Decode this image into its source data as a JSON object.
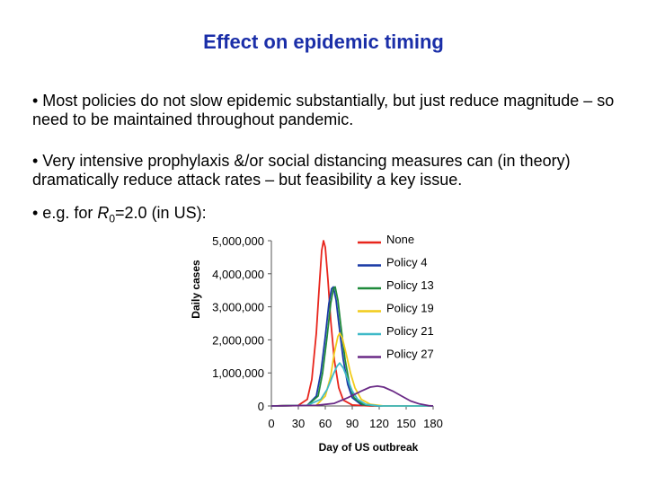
{
  "slide": {
    "title": "Effect on epidemic timing",
    "bullets": [
      "• Most policies do not slow epidemic substantially, but just reduce magnitude – so need to be maintained throughout pandemic.",
      "• Very intensive prophylaxis &/or social distancing measures can (in theory) dramatically reduce attack rates – but feasibility a key issue."
    ],
    "bullet3": {
      "prefix": "• e.g. for ",
      "var": "R",
      "sub": "0",
      "suffix": "=2.0 (in US):"
    }
  },
  "chart_data": {
    "type": "line",
    "xlabel": "Day of US outbreak",
    "ylabel": "Daily cases",
    "xlim": [
      0,
      180
    ],
    "ylim": [
      0,
      5000000
    ],
    "x_ticks": [
      0,
      30,
      60,
      90,
      120,
      150,
      180
    ],
    "x_tick_labels": [
      "0",
      "30",
      "60",
      "90",
      "120",
      "150",
      "180"
    ],
    "y_ticks": [
      0,
      1000000,
      2000000,
      3000000,
      4000000,
      5000000
    ],
    "y_tick_labels": [
      "0",
      "1,000,000",
      "2,000,000",
      "3,000,000",
      "4,000,000",
      "5,000,000"
    ],
    "legend_position": "right",
    "series": [
      {
        "name": "None",
        "color": "#e8251c",
        "points": [
          [
            0,
            0
          ],
          [
            30,
            20000
          ],
          [
            40,
            200000
          ],
          [
            45,
            800000
          ],
          [
            50,
            2200000
          ],
          [
            53,
            3500000
          ],
          [
            56,
            4700000
          ],
          [
            58,
            5000000
          ],
          [
            60,
            4800000
          ],
          [
            63,
            3800000
          ],
          [
            66,
            2600000
          ],
          [
            70,
            1400000
          ],
          [
            75,
            550000
          ],
          [
            80,
            180000
          ],
          [
            90,
            30000
          ],
          [
            110,
            0
          ],
          [
            180,
            0
          ]
        ]
      },
      {
        "name": "Policy 4",
        "color": "#1a3aa6",
        "points": [
          [
            0,
            0
          ],
          [
            40,
            20000
          ],
          [
            50,
            300000
          ],
          [
            55,
            1000000
          ],
          [
            60,
            2100000
          ],
          [
            64,
            3100000
          ],
          [
            67,
            3550000
          ],
          [
            69,
            3600000
          ],
          [
            72,
            3200000
          ],
          [
            75,
            2500000
          ],
          [
            80,
            1400000
          ],
          [
            85,
            650000
          ],
          [
            90,
            250000
          ],
          [
            100,
            40000
          ],
          [
            120,
            0
          ],
          [
            180,
            0
          ]
        ]
      },
      {
        "name": "Policy 13",
        "color": "#1f8a3a",
        "points": [
          [
            0,
            0
          ],
          [
            40,
            20000
          ],
          [
            52,
            300000
          ],
          [
            57,
            1000000
          ],
          [
            62,
            2100000
          ],
          [
            66,
            3100000
          ],
          [
            69,
            3550000
          ],
          [
            71,
            3600000
          ],
          [
            74,
            3200000
          ],
          [
            77,
            2500000
          ],
          [
            82,
            1400000
          ],
          [
            87,
            650000
          ],
          [
            92,
            250000
          ],
          [
            102,
            40000
          ],
          [
            120,
            0
          ],
          [
            180,
            0
          ]
        ]
      },
      {
        "name": "Policy 19",
        "color": "#f2cc1a",
        "points": [
          [
            0,
            0
          ],
          [
            50,
            20000
          ],
          [
            60,
            300000
          ],
          [
            66,
            900000
          ],
          [
            70,
            1600000
          ],
          [
            74,
            2100000
          ],
          [
            76,
            2200000
          ],
          [
            79,
            2050000
          ],
          [
            83,
            1600000
          ],
          [
            88,
            1000000
          ],
          [
            93,
            550000
          ],
          [
            100,
            200000
          ],
          [
            110,
            50000
          ],
          [
            125,
            0
          ],
          [
            180,
            0
          ]
        ]
      },
      {
        "name": "Policy 21",
        "color": "#3fb9c8",
        "points": [
          [
            0,
            0
          ],
          [
            40,
            20000
          ],
          [
            55,
            200000
          ],
          [
            62,
            500000
          ],
          [
            68,
            900000
          ],
          [
            73,
            1200000
          ],
          [
            76,
            1300000
          ],
          [
            80,
            1150000
          ],
          [
            85,
            800000
          ],
          [
            90,
            450000
          ],
          [
            96,
            200000
          ],
          [
            105,
            50000
          ],
          [
            120,
            0
          ],
          [
            180,
            0
          ]
        ]
      },
      {
        "name": "Policy 27",
        "color": "#6a2a86",
        "points": [
          [
            0,
            0
          ],
          [
            50,
            20000
          ],
          [
            70,
            80000
          ],
          [
            85,
            250000
          ],
          [
            100,
            450000
          ],
          [
            110,
            570000
          ],
          [
            118,
            600000
          ],
          [
            125,
            570000
          ],
          [
            135,
            450000
          ],
          [
            145,
            300000
          ],
          [
            155,
            150000
          ],
          [
            165,
            60000
          ],
          [
            175,
            10000
          ],
          [
            180,
            0
          ]
        ]
      }
    ]
  }
}
